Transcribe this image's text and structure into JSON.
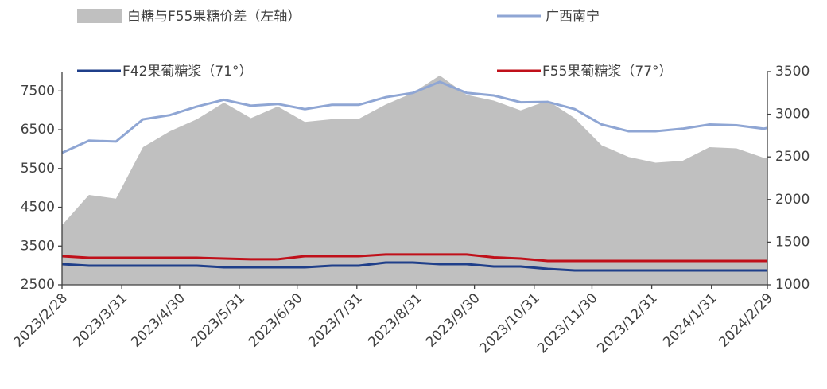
{
  "chart_data": {
    "type": "line",
    "x": [
      "2023/2/28",
      "2023/3/14",
      "2023/3/28",
      "2023/4/11",
      "2023/4/25",
      "2023/5/9",
      "2023/5/23",
      "2023/6/6",
      "2023/6/20",
      "2023/7/4",
      "2023/7/18",
      "2023/8/1",
      "2023/8/15",
      "2023/8/29",
      "2023/9/12",
      "2023/9/26",
      "2023/10/10",
      "2023/10/24",
      "2023/11/7",
      "2023/11/21",
      "2023/12/5",
      "2023/12/19",
      "2024/1/2",
      "2024/1/16",
      "2024/1/30",
      "2024/2/13",
      "2024/2/27",
      "2024/2/29"
    ],
    "series": [
      {
        "name": "白糖与F55果糖价差（左轴）",
        "type": "area",
        "axis": "y",
        "color": "#c0c0c0",
        "values": [
          4040,
          4820,
          4720,
          6050,
          6460,
          6770,
          7200,
          6800,
          7100,
          6700,
          6770,
          6780,
          7150,
          7450,
          7900,
          7400,
          7250,
          7000,
          7250,
          6800,
          6100,
          5800,
          5650,
          5700,
          6050,
          6020,
          5780,
          5780
        ]
      },
      {
        "name": "广西南宁",
        "type": "line",
        "axis": "y2",
        "color": "#8fa6d4",
        "values": [
          2548,
          2690,
          2680,
          2940,
          2990,
          3090,
          3170,
          3100,
          3120,
          3060,
          3110,
          3110,
          3200,
          3250,
          3380,
          3250,
          3220,
          3140,
          3145,
          3060,
          2880,
          2800,
          2800,
          2830,
          2880,
          2870,
          2830,
          2840
        ]
      },
      {
        "name": "F42果葡糖浆（71°）",
        "type": "line",
        "axis": "y2",
        "color": "#1f3f8a",
        "values": [
          1243,
          1224,
          1224,
          1224,
          1224,
          1224,
          1205,
          1205,
          1205,
          1205,
          1224,
          1224,
          1261,
          1261,
          1243,
          1243,
          1215,
          1215,
          1187,
          1168,
          1168,
          1168,
          1168,
          1168,
          1168,
          1168,
          1168,
          1168
        ]
      },
      {
        "name": "F55果葡糖浆（77°）",
        "type": "line",
        "axis": "y2",
        "color": "#c0101a",
        "values": [
          1336,
          1317,
          1317,
          1317,
          1317,
          1317,
          1308,
          1299,
          1299,
          1336,
          1336,
          1336,
          1355,
          1355,
          1355,
          1355,
          1322,
          1308,
          1280,
          1280,
          1280,
          1280,
          1280,
          1280,
          1280,
          1280,
          1280,
          1280
        ]
      }
    ],
    "xlim": [
      "2023/2/28",
      "2024/2/29"
    ],
    "xticks": [
      "2023/2/28",
      "2023/3/31",
      "2023/4/30",
      "2023/5/31",
      "2023/6/30",
      "2023/7/31",
      "2023/8/31",
      "2023/9/30",
      "2023/10/31",
      "2023/11/30",
      "2023/12/31",
      "2024/1/31",
      "2024/2/29"
    ],
    "ylim": [
      2500,
      8000
    ],
    "yticks": [
      2500,
      3500,
      4500,
      5500,
      6500,
      7500
    ],
    "y2lim": [
      1000,
      3500
    ],
    "y2ticks": [
      1000,
      1500,
      2000,
      2500,
      3000,
      3500
    ]
  }
}
